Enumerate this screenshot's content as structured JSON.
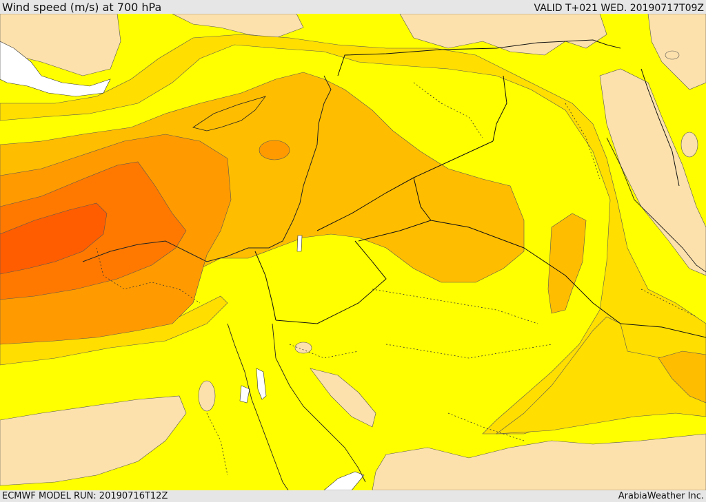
{
  "header": {
    "title": "Wind speed (m/s) at 700 hPa",
    "valid": "VALID T+021 WED. 20190717T09Z"
  },
  "footer": {
    "model_run": "ECMWF MODEL RUN: 20190716T12Z",
    "credit": "ArabiaWeather Inc."
  },
  "colors": {
    "land_light": "#fde1ac",
    "yellow": "#ffff00",
    "gold": "#ffde00",
    "amber": "#ffbd00",
    "orange": "#ff9b00",
    "dark_orange": "#ff7900",
    "red_orange": "#ff5d00",
    "water": "#ffffff"
  }
}
